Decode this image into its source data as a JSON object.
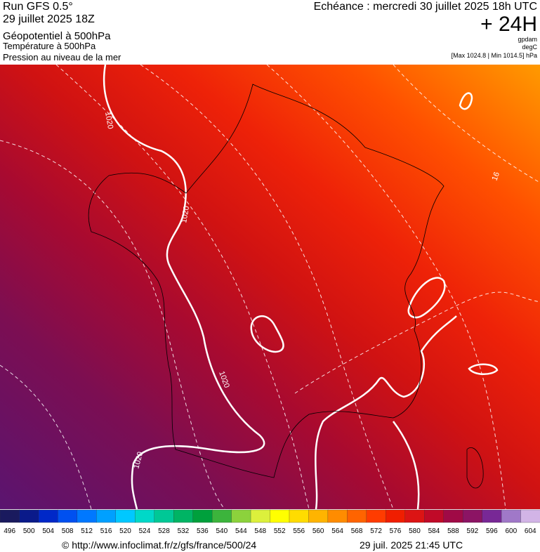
{
  "header": {
    "run": "Run GFS 0.5°",
    "run_date": "29 juillet 2025 18Z",
    "field_main": "Géopotentiel à 500hPa",
    "field_temp": "Température à 500hPa",
    "field_pressure": "Pression au niveau de la mer",
    "echeance": "Echéance : mercredi 30 juillet 2025 18h UTC",
    "lead": "+ 24H",
    "unit_geo": "gpdam",
    "unit_temp": "degC",
    "pressure_range": "[Max 1024.8 | Min 1014.5] hPa"
  },
  "map": {
    "isobar_labels": [
      "1020",
      "1020",
      "1020",
      "1020"
    ],
    "isotherm_label": "16"
  },
  "colorbar": {
    "ticks": [
      496,
      500,
      504,
      508,
      512,
      516,
      520,
      524,
      528,
      532,
      536,
      540,
      544,
      548,
      552,
      556,
      560,
      564,
      568,
      572,
      576,
      580,
      584,
      588,
      592,
      596,
      600,
      604
    ],
    "colors": [
      "#1a1a5e",
      "#0a1a8a",
      "#0028c8",
      "#0050f0",
      "#0078ff",
      "#00a0ff",
      "#00c8ff",
      "#00d8c8",
      "#00c896",
      "#00b464",
      "#00a03c",
      "#3cb43c",
      "#8cd23c",
      "#dcf03c",
      "#ffff00",
      "#ffdc00",
      "#ffb400",
      "#ff8c00",
      "#ff6400",
      "#ff3c00",
      "#f01e00",
      "#dc1414",
      "#c00a28",
      "#a00a46",
      "#8c1464",
      "#782896",
      "#a078c8",
      "#d2b4e6"
    ]
  },
  "footer": {
    "url": "© http://www.infoclimat.fr/z/gfs/france/500/24",
    "timestamp": "29 juil. 2025 21:45 UTC"
  }
}
